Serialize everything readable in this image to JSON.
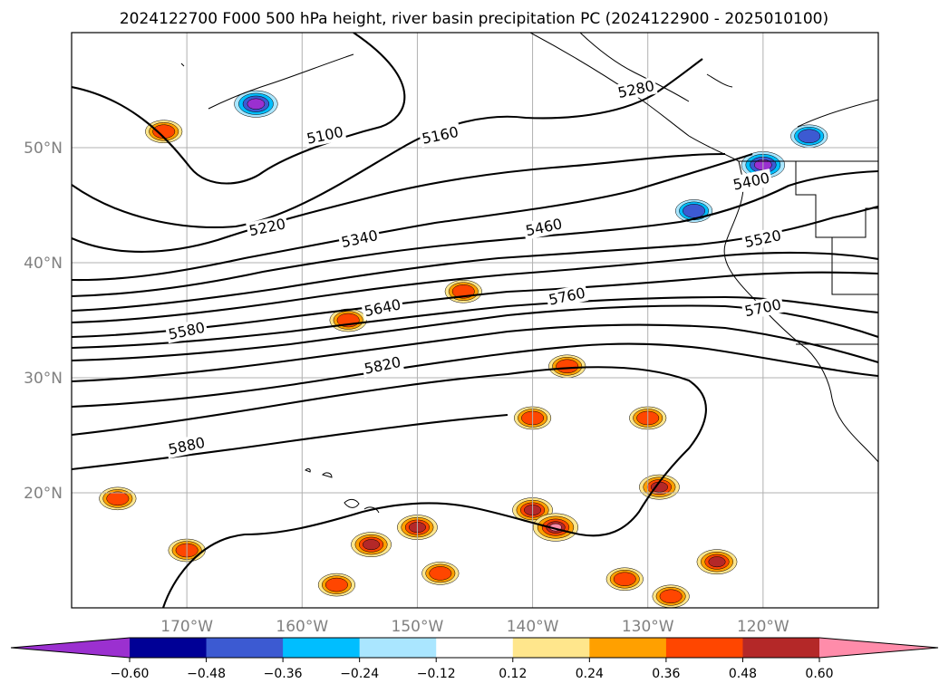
{
  "chart_data": {
    "type": "contour",
    "title": "2024122700 F000 500 hPa height, river basin precipitation PC (2024122900 - 2025010100)",
    "x_ticks": [
      "170°W",
      "160°W",
      "150°W",
      "140°W",
      "130°W",
      "120°W"
    ],
    "x_tick_values": [
      -170,
      -160,
      -150,
      -140,
      -130,
      -120
    ],
    "y_ticks": [
      "20°N",
      "30°N",
      "40°N",
      "50°N"
    ],
    "y_tick_values": [
      20,
      30,
      40,
      50
    ],
    "xlim": [
      -180,
      -110
    ],
    "ylim": [
      10,
      60
    ],
    "grid": true,
    "height_contours": {
      "units": "gpm",
      "levels": [
        5100,
        5160,
        5220,
        5280,
        5340,
        5400,
        5460,
        5520,
        5580,
        5640,
        5700,
        5760,
        5820,
        5880
      ],
      "labels_shown": [
        {
          "text": "5100",
          "lon": -158,
          "lat": 51
        },
        {
          "text": "5160",
          "lon": -148,
          "lat": 51
        },
        {
          "text": "5220",
          "lon": -163,
          "lat": 43
        },
        {
          "text": "5280",
          "lon": -131,
          "lat": 55
        },
        {
          "text": "5340",
          "lon": -155,
          "lat": 42
        },
        {
          "text": "5400",
          "lon": -121,
          "lat": 47
        },
        {
          "text": "5460",
          "lon": -139,
          "lat": 43
        },
        {
          "text": "5520",
          "lon": -120,
          "lat": 42
        },
        {
          "text": "5580",
          "lon": -170,
          "lat": 34
        },
        {
          "text": "5640",
          "lon": -153,
          "lat": 36
        },
        {
          "text": "5700",
          "lon": -120,
          "lat": 36
        },
        {
          "text": "5760",
          "lon": -137,
          "lat": 37
        },
        {
          "text": "5820",
          "lon": -153,
          "lat": 31
        },
        {
          "text": "5880",
          "lon": -170,
          "lat": 24
        }
      ]
    },
    "colorbar": {
      "orientation": "horizontal",
      "extend": "both",
      "ticks": [
        "−0.60",
        "−0.48",
        "−0.36",
        "−0.24",
        "−0.12",
        "0.12",
        "0.24",
        "0.36",
        "0.48",
        "0.60"
      ],
      "bins": [
        {
          "range": [
            null,
            -0.6
          ],
          "color": "#9b30d0"
        },
        {
          "range": [
            -0.6,
            -0.48
          ],
          "color": "#000096"
        },
        {
          "range": [
            -0.48,
            -0.36
          ],
          "color": "#3c5ad2"
        },
        {
          "range": [
            -0.36,
            -0.24
          ],
          "color": "#00beff"
        },
        {
          "range": [
            -0.24,
            -0.12
          ],
          "color": "#aae6ff"
        },
        {
          "range": [
            -0.12,
            0.12
          ],
          "color": "#ffffff"
        },
        {
          "range": [
            0.12,
            0.24
          ],
          "color": "#ffe68c"
        },
        {
          "range": [
            0.24,
            0.36
          ],
          "color": "#ffa000"
        },
        {
          "range": [
            0.36,
            0.48
          ],
          "color": "#ff4600"
        },
        {
          "range": [
            0.48,
            0.6
          ],
          "color": "#b42828"
        },
        {
          "range": [
            0.6,
            null
          ],
          "color": "#ff8caa"
        }
      ]
    },
    "precip_blobs": [
      {
        "lon": -164,
        "lat": 53.8,
        "value": -0.6
      },
      {
        "lon": -120,
        "lat": 48.5,
        "value": -0.6
      },
      {
        "lon": -116,
        "lat": 51,
        "value": -0.4
      },
      {
        "lon": -126,
        "lat": 44.5,
        "value": -0.4
      },
      {
        "lon": -172,
        "lat": 51.4,
        "value": 0.4
      },
      {
        "lon": -156,
        "lat": 35,
        "value": 0.4
      },
      {
        "lon": -146,
        "lat": 37.5,
        "value": 0.4
      },
      {
        "lon": -137,
        "lat": 31,
        "value": 0.4
      },
      {
        "lon": -140,
        "lat": 26.5,
        "value": 0.4
      },
      {
        "lon": -130,
        "lat": 26.5,
        "value": 0.4
      },
      {
        "lon": -129,
        "lat": 20.5,
        "value": 0.5
      },
      {
        "lon": -140,
        "lat": 18.5,
        "value": 0.5
      },
      {
        "lon": -138,
        "lat": 17,
        "value": 0.65
      },
      {
        "lon": -154,
        "lat": 15.5,
        "value": 0.5
      },
      {
        "lon": -150,
        "lat": 17,
        "value": 0.5
      },
      {
        "lon": -148,
        "lat": 13,
        "value": 0.4
      },
      {
        "lon": -176,
        "lat": 19.5,
        "value": 0.4
      },
      {
        "lon": -170,
        "lat": 15,
        "value": 0.4
      },
      {
        "lon": -124,
        "lat": 14,
        "value": 0.5
      },
      {
        "lon": -157,
        "lat": 12,
        "value": 0.4
      },
      {
        "lon": -132,
        "lat": 12.5,
        "value": 0.4
      },
      {
        "lon": -128,
        "lat": 11,
        "value": 0.4
      }
    ],
    "colors": {
      "height_contour": "#000000",
      "coastline": "#000000",
      "gridline": "#b0b0b0",
      "tick_text": "#808080"
    }
  }
}
